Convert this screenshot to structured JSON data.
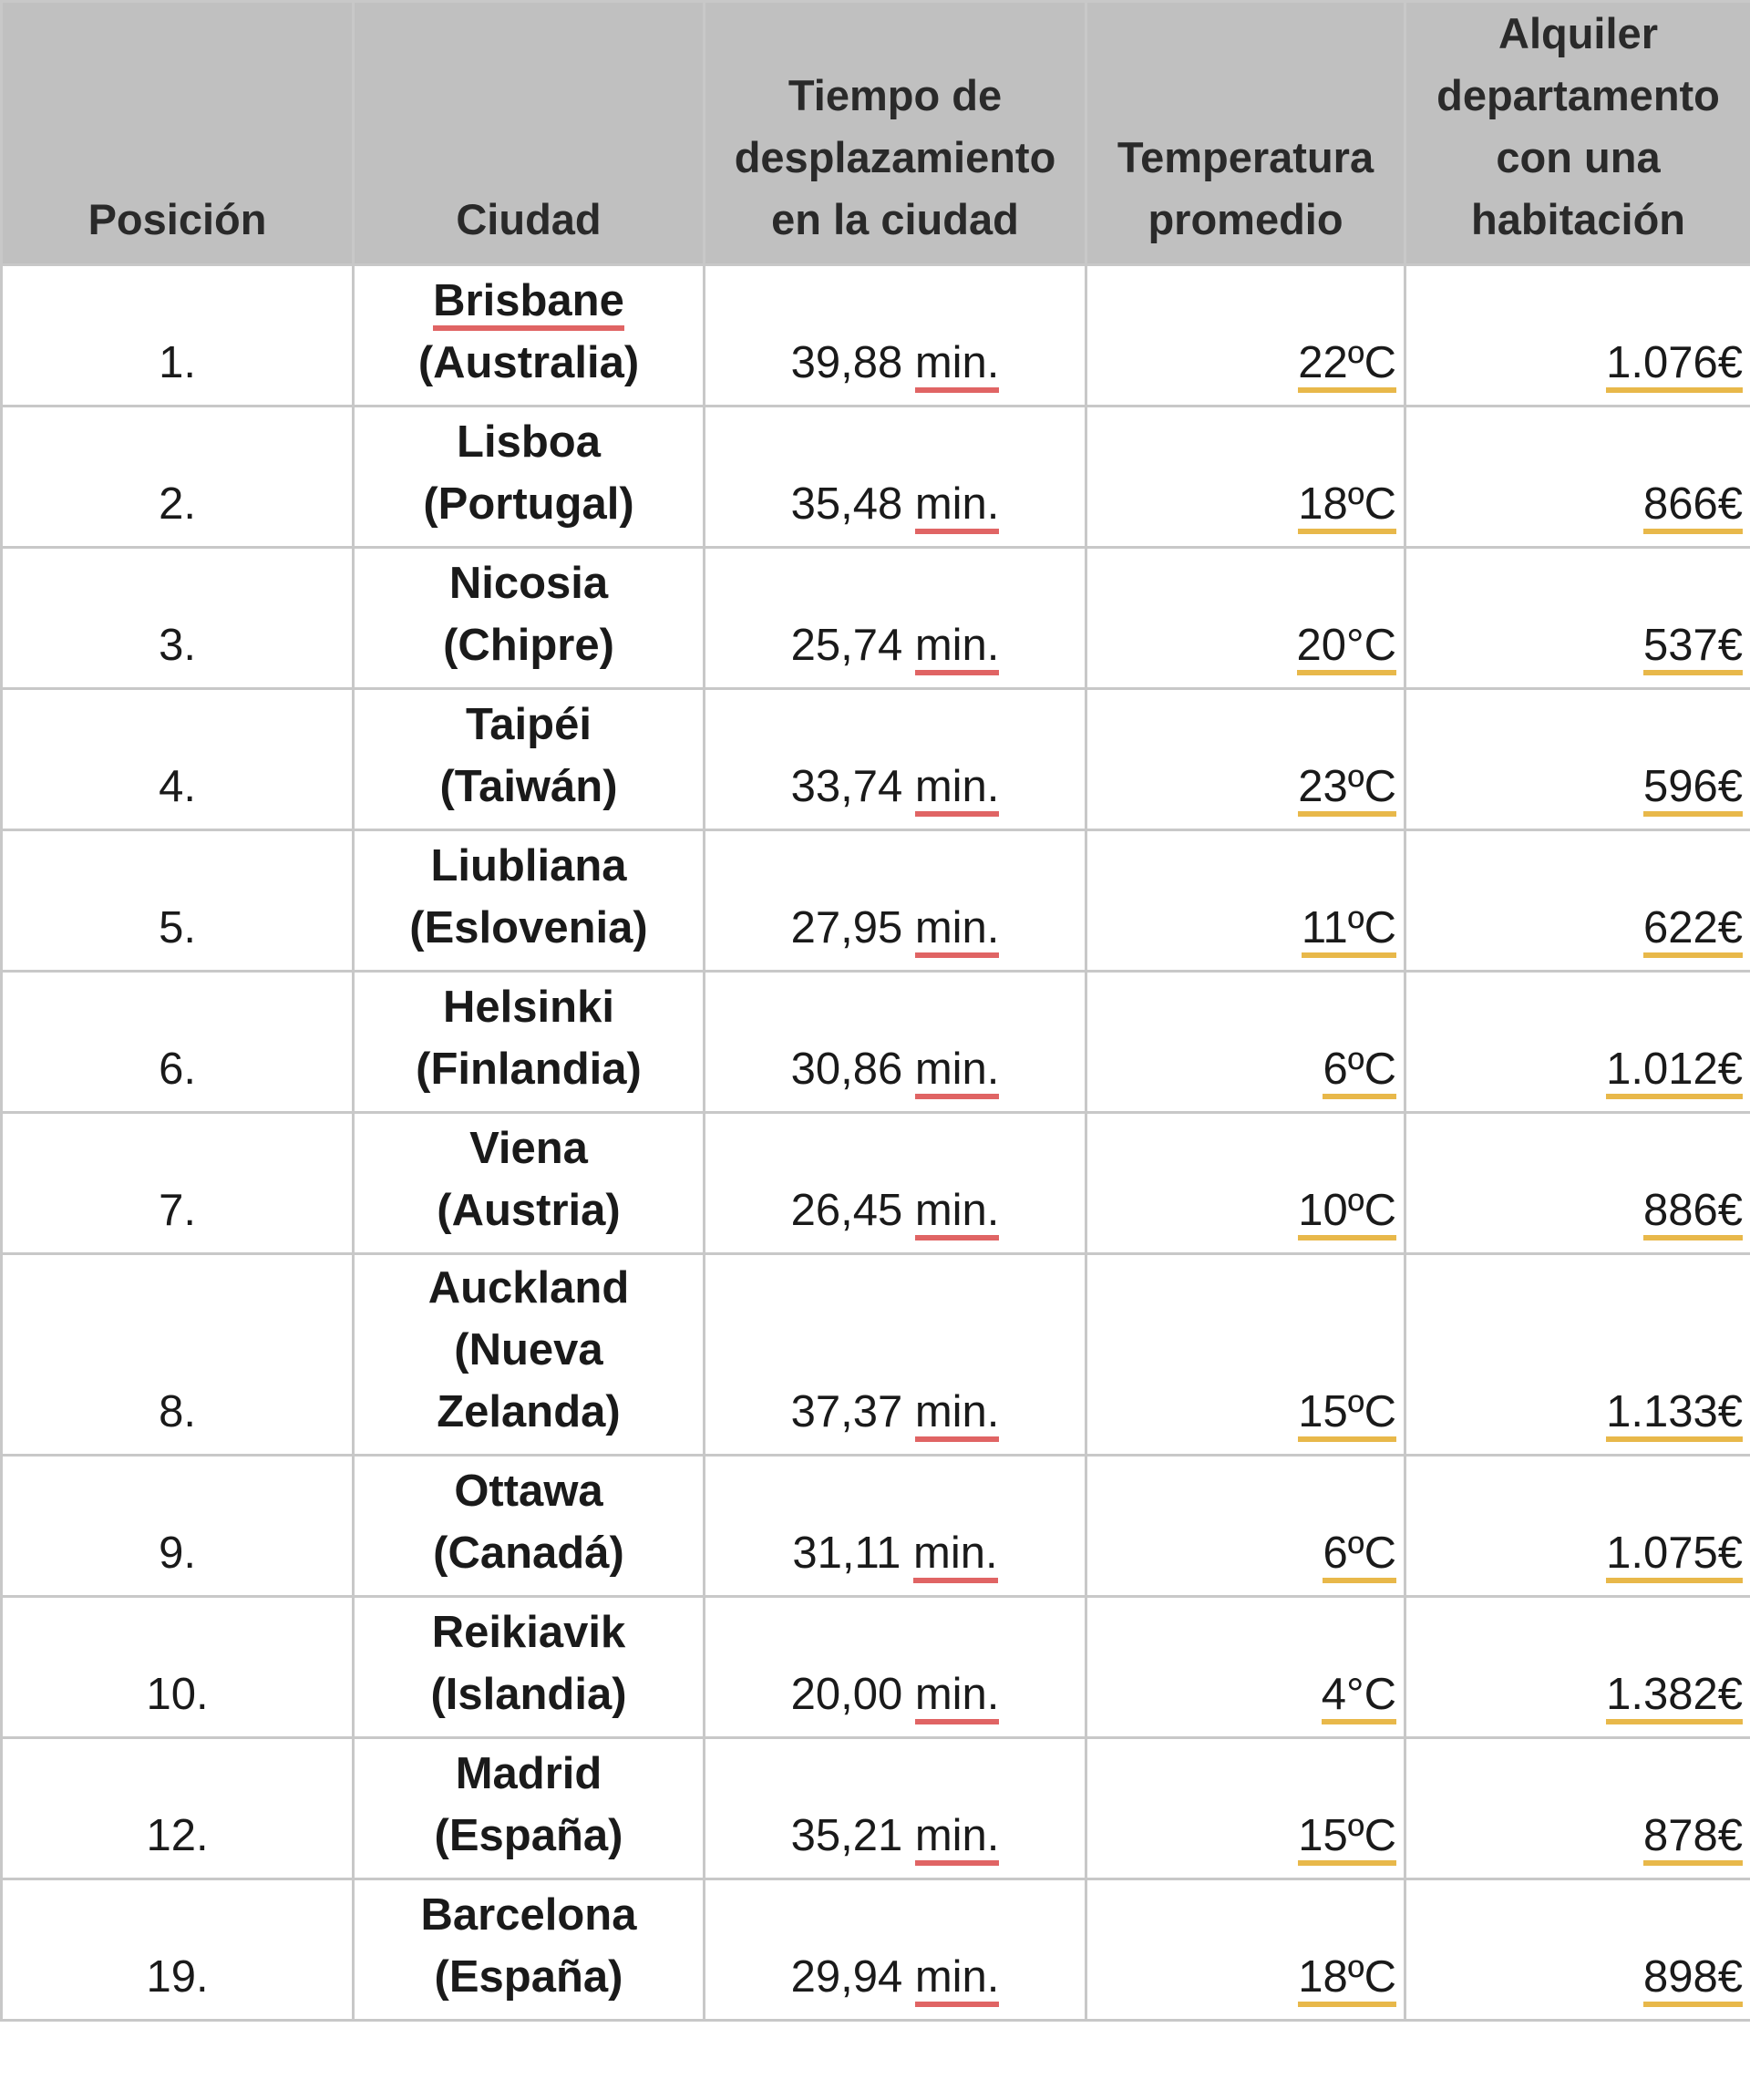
{
  "colors": {
    "header_bg": "#c0c0c0",
    "link_red": "#e06464",
    "link_yellow": "#e8b84a"
  },
  "headers": [
    "Posición",
    "Ciudad",
    "Tiempo de desplazamiento en la ciudad",
    "Temperatura promedio",
    "Alquiler departamento con una habitación"
  ],
  "rows": [
    {
      "pos": "1.",
      "city": "Brisbane",
      "country": "(Australia)",
      "time": "39,88",
      "unit": "min.",
      "temp": "22ºC",
      "rent": "1.076€"
    },
    {
      "pos": "2.",
      "city": "Lisboa",
      "country": "(Portugal)",
      "time": "35,48",
      "unit": "min.",
      "temp": "18ºC",
      "rent": "866€"
    },
    {
      "pos": "3.",
      "city": "Nicosia",
      "country": "(Chipre)",
      "time": "25,74",
      "unit": "min.",
      "temp": "20°C",
      "rent": "537€"
    },
    {
      "pos": "4.",
      "city": "Taipéi",
      "country": "(Taiwán)",
      "time": "33,74",
      "unit": "min.",
      "temp": "23ºC",
      "rent": "596€"
    },
    {
      "pos": "5.",
      "city": "Liubliana",
      "country": "(Eslovenia)",
      "time": "27,95",
      "unit": "min.",
      "temp": "11ºC",
      "rent": "622€"
    },
    {
      "pos": "6.",
      "city": "Helsinki",
      "country": "(Finlandia)",
      "time": "30,86",
      "unit": "min.",
      "temp": "6ºC",
      "rent": "1.012€"
    },
    {
      "pos": "7.",
      "city": "Viena",
      "country": "(Austria)",
      "time": "26,45",
      "unit": "min.",
      "temp": "10ºC",
      "rent": "886€"
    },
    {
      "pos": "8.",
      "city": "Auckland",
      "country": "(Nueva Zelanda)",
      "time": "37,37",
      "unit": "min.",
      "temp": "15ºC",
      "rent": "1.133€"
    },
    {
      "pos": "9.",
      "city": "Ottawa",
      "country": "(Canadá)",
      "time": "31,11",
      "unit": "min.",
      "temp": "6ºC",
      "rent": "1.075€"
    },
    {
      "pos": "10.",
      "city": "Reikiavik",
      "country": "(Islandia)",
      "time": "20,00",
      "unit": "min.",
      "temp": "4°C",
      "rent": "1.382€"
    },
    {
      "pos": "12.",
      "city": "Madrid",
      "country": "(España)",
      "time": "35,21",
      "unit": "min.",
      "temp": "15ºC",
      "rent": "878€"
    },
    {
      "pos": "19.",
      "city": "Barcelona",
      "country": "(España)",
      "time": "29,94",
      "unit": "min.",
      "temp": "18ºC",
      "rent": "898€"
    }
  ]
}
